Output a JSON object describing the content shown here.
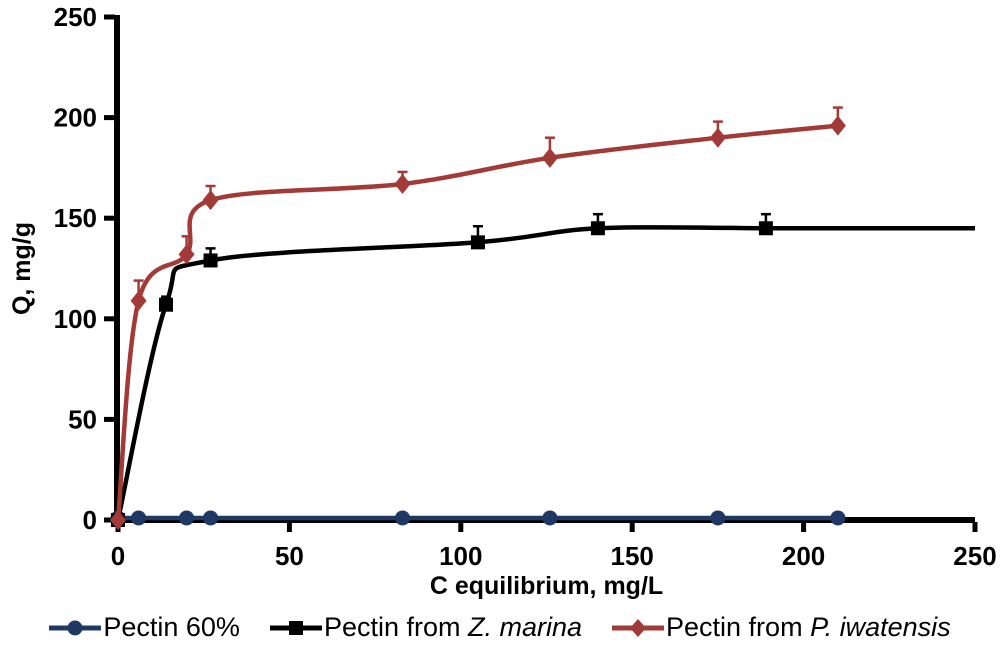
{
  "chart_data": {
    "type": "line",
    "title": "",
    "xlabel": "C equilibrium, mg/L",
    "ylabel": "Q, mg/g",
    "xlim": [
      0,
      250
    ],
    "ylim": [
      0,
      250
    ],
    "x_ticks": [
      0,
      50,
      100,
      150,
      200,
      250
    ],
    "y_ticks": [
      0,
      50,
      100,
      150,
      200,
      250
    ],
    "grid": false,
    "legend_position": "bottom-center",
    "axis_color": "#000000",
    "series": [
      {
        "name_prefix": "Pectin 60%",
        "name_italic": "",
        "color": "#1f3864",
        "marker": "circle",
        "x": [
          0,
          6,
          20,
          27,
          83,
          126,
          175,
          210
        ],
        "y": [
          1,
          1,
          1,
          1,
          1,
          1,
          1,
          1
        ],
        "y_err_up": [
          0,
          0,
          0,
          0,
          0,
          0,
          0,
          0
        ]
      },
      {
        "name_prefix": "Pectin from ",
        "name_italic": "Z. marina",
        "color": "#000000",
        "marker": "square",
        "x": [
          0,
          14,
          27,
          105,
          140,
          189
        ],
        "y": [
          0,
          107,
          129,
          138,
          145,
          145
        ],
        "y_err_up": [
          0,
          4,
          6,
          8,
          7,
          7
        ],
        "line_extends_to_x": 250
      },
      {
        "name_prefix": "Pectin from ",
        "name_italic": "P. iwatensis",
        "color": "#a23b38",
        "marker": "diamond",
        "x": [
          0,
          6,
          20,
          27,
          83,
          126,
          175,
          210
        ],
        "y": [
          0,
          109,
          132,
          159,
          167,
          180,
          190,
          196
        ],
        "y_err_up": [
          0,
          10,
          9,
          7,
          6,
          10,
          8,
          9
        ]
      }
    ]
  }
}
